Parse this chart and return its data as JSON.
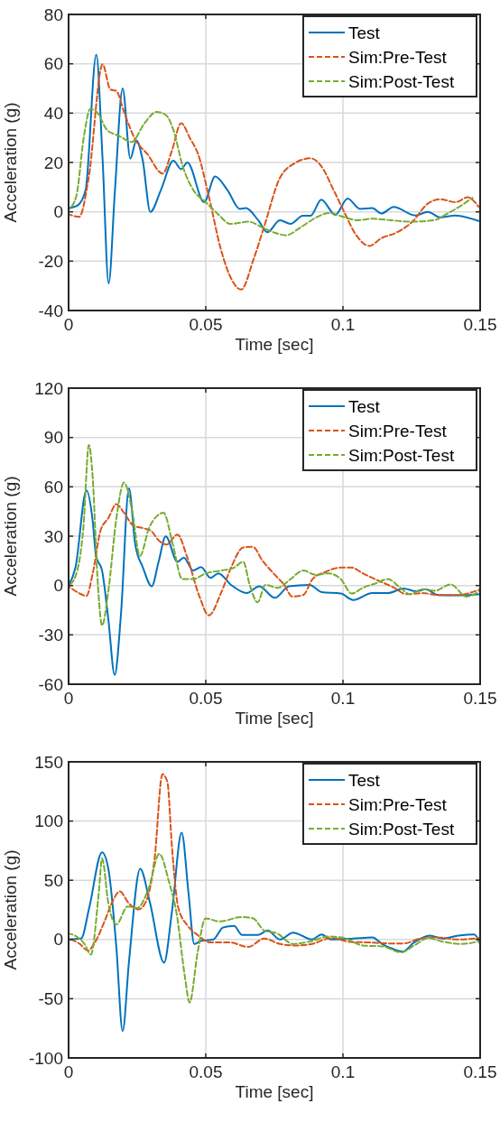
{
  "chart_data": [
    {
      "type": "line",
      "xlabel": "Time [sec]",
      "ylabel": "Acceleration (g)",
      "xlim": [
        0,
        0.15
      ],
      "xticks": [
        0,
        0.05,
        0.1,
        0.15
      ],
      "ylim": [
        -40,
        80
      ],
      "yticks": [
        -40,
        -20,
        0,
        20,
        40,
        60,
        80
      ],
      "grid": true,
      "legend": "top right",
      "series": [
        {
          "name": "Test",
          "color": "#0072bd",
          "line_style": "solid",
          "x": [
            0,
            0.0034,
            0.0062,
            0.0101,
            0.0124,
            0.0146,
            0.0169,
            0.0197,
            0.0225,
            0.0247,
            0.027,
            0.0298,
            0.0337,
            0.0382,
            0.041,
            0.0433,
            0.0494,
            0.0534,
            0.0579,
            0.0624,
            0.0646,
            0.0691,
            0.0725,
            0.077,
            0.0809,
            0.0854,
            0.0882,
            0.0921,
            0.0972,
            0.1017,
            0.1062,
            0.1107,
            0.114,
            0.1185,
            0.1264,
            0.1309,
            0.1354,
            0.141,
            0.1494
          ],
          "values": [
            1.5,
            2.7,
            8.8,
            63.7,
            21,
            -29,
            8.8,
            50,
            21.6,
            29,
            21,
            0,
            9,
            20.7,
            17.3,
            20,
            3.9,
            14.3,
            8.8,
            1.2,
            1.5,
            -3.4,
            -8.3,
            -3.4,
            -4.9,
            -1.6,
            -1.6,
            4.9,
            -1.2,
            5.4,
            1.2,
            1.5,
            -0.7,
            2,
            -1.5,
            0,
            -2.2,
            -1.5,
            -3.7
          ]
        },
        {
          "name": "Sim:Pre-Test",
          "color": "#d95319",
          "line_style": "dashed",
          "x": [
            0,
            0.0039,
            0.0073,
            0.0124,
            0.0152,
            0.0174,
            0.0202,
            0.0242,
            0.0287,
            0.0343,
            0.0376,
            0.041,
            0.0444,
            0.0472,
            0.0511,
            0.0556,
            0.0596,
            0.0629,
            0.0674,
            0.0713,
            0.077,
            0.0826,
            0.0882,
            0.0921,
            0.0966,
            0.1006,
            0.1045,
            0.1096,
            0.114,
            0.1197,
            0.1253,
            0.1309,
            0.1354,
            0.141,
            0.1455,
            0.1494
          ],
          "values": [
            -1,
            -2,
            13.7,
            59.8,
            49.6,
            49,
            40.5,
            29.5,
            23.4,
            15.5,
            24.6,
            35.9,
            29.5,
            23.4,
            6.3,
            -15.6,
            -27.8,
            -31.5,
            -19.3,
            -5.9,
            13.7,
            19.8,
            21.7,
            18.5,
            8.8,
            -0.4,
            -8.9,
            -13.8,
            -10.7,
            -8.3,
            -4,
            3.3,
            5.1,
            3.9,
            5.9,
            2.1
          ]
        },
        {
          "name": "Sim:Post-Test",
          "color": "#77ac30",
          "line_style": "dashed",
          "x": [
            0,
            0.0028,
            0.0056,
            0.0079,
            0.0107,
            0.014,
            0.0185,
            0.023,
            0.0275,
            0.032,
            0.0354,
            0.0382,
            0.0416,
            0.0455,
            0.05,
            0.0545,
            0.059,
            0.0657,
            0.0702,
            0.0747,
            0.0792,
            0.0848,
            0.0904,
            0.0949,
            0.1006,
            0.1051,
            0.1107,
            0.1174,
            0.1242,
            0.1331,
            0.1376,
            0.1433,
            0.1472
          ],
          "values": [
            0.9,
            6.3,
            30.7,
            41.7,
            39.9,
            33.2,
            30.7,
            28.3,
            35.6,
            40.5,
            39.3,
            33.2,
            18.5,
            8.8,
            3.9,
            -1,
            -4.9,
            -4,
            -6.1,
            -8.3,
            -9.5,
            -6.1,
            -2.2,
            -0.5,
            -2.2,
            -3.4,
            -2.8,
            -3.4,
            -4,
            -3.4,
            -1,
            2.7,
            5.7
          ]
        }
      ]
    },
    {
      "type": "line",
      "xlabel": "Time [sec]",
      "ylabel": "Acceleration (g)",
      "xlim": [
        0,
        0.15
      ],
      "xticks": [
        0,
        0.05,
        0.1,
        0.15
      ],
      "ylim": [
        -60,
        120
      ],
      "yticks": [
        -60,
        -30,
        0,
        30,
        60,
        90,
        120
      ],
      "grid": true,
      "legend": "top right",
      "series": [
        {
          "name": "Test",
          "color": "#0072bd",
          "line_style": "solid",
          "x": [
            0,
            0.0025,
            0.0065,
            0.0088,
            0.01,
            0.0122,
            0.0145,
            0.0168,
            0.0191,
            0.022,
            0.0243,
            0.0271,
            0.0303,
            0.0328,
            0.0354,
            0.0397,
            0.042,
            0.0454,
            0.0483,
            0.0517,
            0.0546,
            0.0592,
            0.0649,
            0.0695,
            0.0752,
            0.0803,
            0.0878,
            0.0923,
            0.0992,
            0.1038,
            0.1106,
            0.1164,
            0.1221,
            0.1267,
            0.1301,
            0.1347,
            0.1427,
            0.15
          ],
          "values": [
            0,
            10.9,
            57.9,
            39,
            17.9,
            9.1,
            -20.7,
            -54.4,
            -17.2,
            59.1,
            24.9,
            10.9,
            -0.5,
            14.4,
            29.8,
            14.4,
            17,
            9.1,
            11.2,
            4.7,
            7.4,
            0.4,
            -4.6,
            -0.5,
            -7.5,
            -0.5,
            0.4,
            -4,
            -4.9,
            -8.8,
            -4.6,
            -4.6,
            -1.8,
            -3.5,
            -2.3,
            -5.8,
            -6,
            -5.3
          ]
        },
        {
          "name": "Sim:Pre-Test",
          "color": "#d95319",
          "line_style": "dashed",
          "x": [
            0,
            0.0031,
            0.0065,
            0.0088,
            0.0117,
            0.0145,
            0.0174,
            0.0202,
            0.0237,
            0.0271,
            0.03,
            0.0328,
            0.0357,
            0.0397,
            0.0431,
            0.0477,
            0.0511,
            0.0557,
            0.0592,
            0.0637,
            0.0672,
            0.0706,
            0.0752,
            0.0786,
            0.0815,
            0.0855,
            0.0889,
            0.0935,
            0.0992,
            0.1032,
            0.1072,
            0.1129,
            0.1187,
            0.1232,
            0.129,
            0.1347,
            0.1415,
            0.15
          ],
          "values": [
            -0.5,
            -4,
            -6.3,
            7.4,
            33.7,
            41,
            49.5,
            44.2,
            36.3,
            34.9,
            33.3,
            27.5,
            24.9,
            31,
            17.9,
            -6.7,
            -18.1,
            -4,
            10.9,
            23.2,
            23.5,
            15.3,
            6.5,
            0.4,
            -6.7,
            -5.8,
            3.9,
            8.2,
            10.9,
            10.9,
            7.4,
            3,
            -1.4,
            -5.3,
            -4.6,
            -5.8,
            -5.8,
            -2.3
          ]
        },
        {
          "name": "Sim:Post-Test",
          "color": "#77ac30",
          "line_style": "dashed",
          "x": [
            0,
            0.0025,
            0.0054,
            0.0074,
            0.0088,
            0.0105,
            0.0122,
            0.0145,
            0.0174,
            0.0202,
            0.0231,
            0.026,
            0.0294,
            0.0346,
            0.038,
            0.0414,
            0.0454,
            0.05,
            0.0557,
            0.0603,
            0.0637,
            0.066,
            0.0689,
            0.0717,
            0.0763,
            0.0809,
            0.0855,
            0.0901,
            0.0946,
            0.0992,
            0.1032,
            0.1072,
            0.1118,
            0.1164,
            0.1209,
            0.1244,
            0.129,
            0.1335,
            0.1392,
            0.145,
            0.15
          ],
          "values": [
            0,
            5.6,
            35.4,
            85.4,
            65.3,
            5.6,
            -24.2,
            -3.2,
            40.7,
            62.6,
            46,
            17.9,
            35.4,
            44.2,
            24.9,
            3.9,
            3.9,
            7.4,
            9.1,
            10.9,
            14.4,
            0.4,
            -10.2,
            0.4,
            -1.4,
            3.9,
            9.1,
            6.5,
            7.4,
            3.9,
            -4.9,
            -1.4,
            1.2,
            3.9,
            -1.4,
            -5.3,
            -2.3,
            -3.2,
            0.7,
            -6.7,
            -3.2
          ]
        }
      ]
    },
    {
      "type": "line",
      "xlabel": "Time [sec]",
      "ylabel": "Acceleration (g)",
      "xlim": [
        0,
        0.15
      ],
      "xticks": [
        0,
        0.05,
        0.1,
        0.15
      ],
      "ylim": [
        -100,
        150
      ],
      "yticks": [
        -100,
        -50,
        0,
        50,
        100,
        150
      ],
      "grid": true,
      "legend": "top right",
      "series": [
        {
          "name": "Test",
          "color": "#0072bd",
          "line_style": "solid",
          "x": [
            0,
            0.0046,
            0.0075,
            0.0122,
            0.0145,
            0.0174,
            0.0197,
            0.022,
            0.0261,
            0.0296,
            0.0348,
            0.0377,
            0.0412,
            0.0437,
            0.0458,
            0.0481,
            0.0528,
            0.0563,
            0.0603,
            0.0632,
            0.069,
            0.0725,
            0.0771,
            0.0818,
            0.0887,
            0.0922,
            0.0957,
            0.1038,
            0.1107,
            0.1143,
            0.1178,
            0.1218,
            0.1259,
            0.1317,
            0.1363,
            0.1421,
            0.1479,
            0.15
          ],
          "values": [
            0,
            0.8,
            26.6,
            73.6,
            59.6,
            -6.3,
            -77.4,
            -19,
            59.6,
            31.7,
            -19.5,
            24.1,
            90.1,
            39.3,
            -3.8,
            -1.3,
            0,
            10.2,
            11.4,
            3.8,
            3.8,
            7.6,
            0,
            5.8,
            0,
            4.3,
            0,
            0.8,
            1.8,
            -3.8,
            -7.6,
            -10.2,
            -2.5,
            3.3,
            0.8,
            3.3,
            4.3,
            -3.8
          ]
        },
        {
          "name": "Sim:Pre-Test",
          "color": "#d95319",
          "line_style": "dashed",
          "x": [
            0,
            0.0041,
            0.007,
            0.0099,
            0.0133,
            0.0162,
            0.0186,
            0.022,
            0.0255,
            0.0284,
            0.0313,
            0.0342,
            0.036,
            0.0377,
            0.04,
            0.0435,
            0.047,
            0.0516,
            0.0586,
            0.0655,
            0.0713,
            0.0771,
            0.083,
            0.0887,
            0.0957,
            0.1026,
            0.1096,
            0.1166,
            0.1224,
            0.1282,
            0.134,
            0.1421,
            0.1497
          ],
          "values": [
            0.8,
            -3.8,
            -9.4,
            -1.3,
            16.5,
            33,
            40.6,
            30.5,
            25.4,
            33,
            67.3,
            139.6,
            133.2,
            77.4,
            26.6,
            11.4,
            3.8,
            -2.5,
            -2.5,
            -6.3,
            0.8,
            -3.8,
            -5.1,
            -3.8,
            1.3,
            -2,
            -2.5,
            -3.3,
            -3.3,
            0.8,
            1.8,
            0,
            1.3
          ]
        },
        {
          "name": "Sim:Post-Test",
          "color": "#77ac30",
          "line_style": "dashed",
          "x": [
            0,
            0.0029,
            0.0058,
            0.0081,
            0.011,
            0.0122,
            0.0145,
            0.0174,
            0.0215,
            0.025,
            0.029,
            0.0331,
            0.0365,
            0.0394,
            0.0424,
            0.0441,
            0.047,
            0.0499,
            0.0551,
            0.0632,
            0.0673,
            0.0713,
            0.076,
            0.0818,
            0.0887,
            0.0946,
            0.1003,
            0.1073,
            0.1143,
            0.1212,
            0.1259,
            0.1311,
            0.1363,
            0.1433,
            0.1497
          ],
          "values": [
            5.1,
            2.5,
            -3.8,
            -12.7,
            39.3,
            68.5,
            30.5,
            12.7,
            27.9,
            26.6,
            41.9,
            72.3,
            49.5,
            21.6,
            -31.7,
            -53.3,
            -11.4,
            17.8,
            15.2,
            19,
            17.8,
            7.6,
            5.1,
            -3.8,
            -1.3,
            2.5,
            1.3,
            -5.1,
            -5.8,
            -10.9,
            -5.1,
            1.3,
            -1.8,
            -3.8,
            -1.3
          ]
        }
      ]
    }
  ]
}
